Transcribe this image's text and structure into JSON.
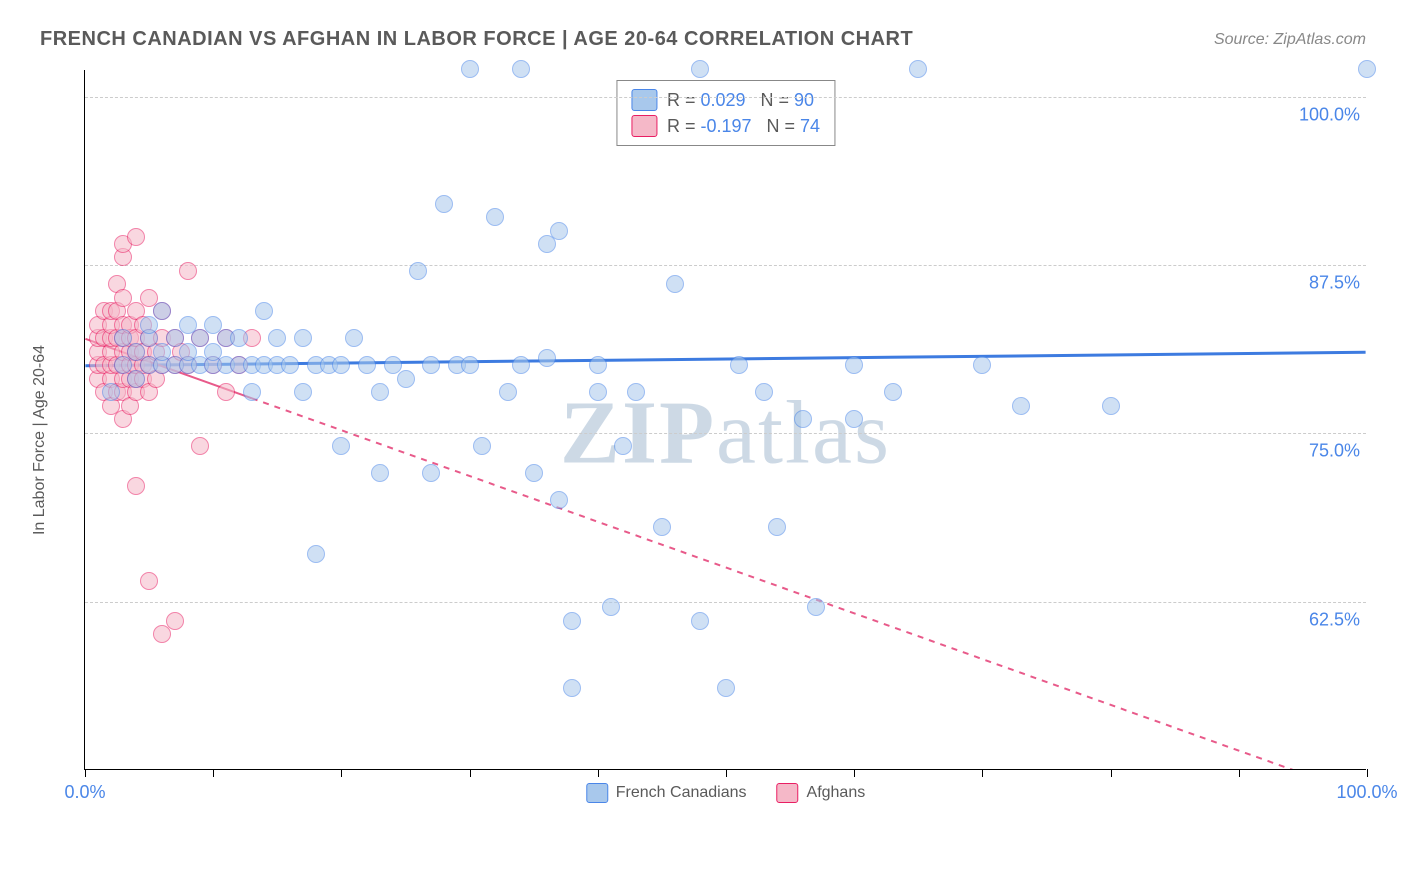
{
  "title": "FRENCH CANADIAN VS AFGHAN IN LABOR FORCE | AGE 20-64 CORRELATION CHART",
  "source": "Source: ZipAtlas.com",
  "y_axis_label": "In Labor Force | Age 20-64",
  "watermark_bold": "ZIP",
  "watermark_rest": "atlas",
  "chart": {
    "type": "scatter",
    "x_range": [
      0,
      100
    ],
    "y_range": [
      50,
      102
    ],
    "background_color": "#ffffff",
    "grid_color": "#cccccc",
    "y_ticks": [
      62.5,
      75.0,
      87.5,
      100.0
    ],
    "y_tick_labels": [
      "62.5%",
      "75.0%",
      "87.5%",
      "100.0%"
    ],
    "y_tick_color": "#4a86e8",
    "x_ticks": [
      0,
      10,
      20,
      30,
      40,
      50,
      60,
      70,
      80,
      90,
      100
    ],
    "x_tick_labels_shown": {
      "0": "0.0%",
      "100": "100.0%"
    },
    "x_tick_color": "#4a86e8",
    "marker_radius": 9,
    "series": {
      "french_canadians": {
        "label": "French Canadians",
        "fill_color": "#a8c8ec",
        "stroke_color": "#4a86e8",
        "fill_opacity": 0.55,
        "R": "0.029",
        "N": "90",
        "trend": {
          "y_at_x0": 80.0,
          "y_at_x100": 81.0,
          "solid_until_x": 100,
          "color": "#3d7be0",
          "width": 3
        },
        "points": [
          [
            2,
            78
          ],
          [
            3,
            80
          ],
          [
            3,
            82
          ],
          [
            4,
            79
          ],
          [
            4,
            81
          ],
          [
            5,
            80
          ],
          [
            5,
            82
          ],
          [
            5,
            83
          ],
          [
            6,
            80
          ],
          [
            6,
            81
          ],
          [
            6,
            84
          ],
          [
            7,
            80
          ],
          [
            7,
            82
          ],
          [
            8,
            80
          ],
          [
            8,
            81
          ],
          [
            8,
            83
          ],
          [
            9,
            80
          ],
          [
            9,
            82
          ],
          [
            10,
            80
          ],
          [
            10,
            81
          ],
          [
            10,
            83
          ],
          [
            11,
            80
          ],
          [
            11,
            82
          ],
          [
            12,
            80
          ],
          [
            12,
            82
          ],
          [
            13,
            80
          ],
          [
            13,
            78
          ],
          [
            14,
            84
          ],
          [
            14,
            80
          ],
          [
            15,
            80
          ],
          [
            15,
            82
          ],
          [
            16,
            80
          ],
          [
            17,
            82
          ],
          [
            17,
            78
          ],
          [
            18,
            80
          ],
          [
            18,
            66
          ],
          [
            19,
            80
          ],
          [
            20,
            74
          ],
          [
            20,
            80
          ],
          [
            21,
            82
          ],
          [
            22,
            80
          ],
          [
            23,
            78
          ],
          [
            23,
            72
          ],
          [
            24,
            80
          ],
          [
            25,
            79
          ],
          [
            26,
            87
          ],
          [
            27,
            80
          ],
          [
            27,
            72
          ],
          [
            28,
            92
          ],
          [
            29,
            80
          ],
          [
            30,
            80
          ],
          [
            30,
            102
          ],
          [
            31,
            74
          ],
          [
            32,
            91
          ],
          [
            33,
            78
          ],
          [
            34,
            80
          ],
          [
            34,
            102
          ],
          [
            35,
            72
          ],
          [
            36,
            89
          ],
          [
            36,
            80.5
          ],
          [
            37,
            70
          ],
          [
            37,
            90
          ],
          [
            38,
            61
          ],
          [
            38,
            56
          ],
          [
            40,
            78
          ],
          [
            40,
            80
          ],
          [
            41,
            62
          ],
          [
            42,
            74
          ],
          [
            43,
            78
          ],
          [
            45,
            68
          ],
          [
            46,
            86
          ],
          [
            48,
            102
          ],
          [
            48,
            61
          ],
          [
            50,
            56
          ],
          [
            51,
            80
          ],
          [
            53,
            78
          ],
          [
            54,
            68
          ],
          [
            56,
            76
          ],
          [
            57,
            62
          ],
          [
            60,
            80
          ],
          [
            60,
            76
          ],
          [
            63,
            78
          ],
          [
            65,
            102
          ],
          [
            70,
            80
          ],
          [
            73,
            77
          ],
          [
            80,
            77
          ],
          [
            100,
            102
          ]
        ]
      },
      "afghans": {
        "label": "Afghans",
        "fill_color": "#f5b8c8",
        "stroke_color": "#e91e63",
        "fill_opacity": 0.55,
        "R": "-0.197",
        "N": "74",
        "trend": {
          "y_at_x0": 82.0,
          "y_at_x100": 48.0,
          "solid_until_x": 13,
          "color": "#e85a8a",
          "width": 2
        },
        "points": [
          [
            1,
            79
          ],
          [
            1,
            80
          ],
          [
            1,
            81
          ],
          [
            1,
            82
          ],
          [
            1,
            83
          ],
          [
            1.5,
            78
          ],
          [
            1.5,
            80
          ],
          [
            1.5,
            82
          ],
          [
            1.5,
            84
          ],
          [
            2,
            77
          ],
          [
            2,
            79
          ],
          [
            2,
            80
          ],
          [
            2,
            81
          ],
          [
            2,
            82
          ],
          [
            2,
            83
          ],
          [
            2,
            84
          ],
          [
            2.5,
            78
          ],
          [
            2.5,
            80
          ],
          [
            2.5,
            82
          ],
          [
            2.5,
            84
          ],
          [
            2.5,
            86
          ],
          [
            3,
            76
          ],
          [
            3,
            78
          ],
          [
            3,
            79
          ],
          [
            3,
            80
          ],
          [
            3,
            81
          ],
          [
            3,
            82
          ],
          [
            3,
            83
          ],
          [
            3,
            85
          ],
          [
            3,
            88
          ],
          [
            3,
            89
          ],
          [
            3.5,
            77
          ],
          [
            3.5,
            79
          ],
          [
            3.5,
            80
          ],
          [
            3.5,
            81
          ],
          [
            3.5,
            82
          ],
          [
            3.5,
            83
          ],
          [
            4,
            71
          ],
          [
            4,
            78
          ],
          [
            4,
            79
          ],
          [
            4,
            80
          ],
          [
            4,
            81
          ],
          [
            4,
            82
          ],
          [
            4,
            84
          ],
          [
            4,
            89.5
          ],
          [
            4.5,
            79
          ],
          [
            4.5,
            80
          ],
          [
            4.5,
            81
          ],
          [
            4.5,
            83
          ],
          [
            5,
            64
          ],
          [
            5,
            78
          ],
          [
            5,
            80
          ],
          [
            5,
            82
          ],
          [
            5,
            85
          ],
          [
            5.5,
            79
          ],
          [
            5.5,
            81
          ],
          [
            6,
            60
          ],
          [
            6,
            80
          ],
          [
            6,
            82
          ],
          [
            6,
            84
          ],
          [
            7,
            61
          ],
          [
            7,
            80
          ],
          [
            7,
            82
          ],
          [
            7.5,
            81
          ],
          [
            8,
            87
          ],
          [
            8,
            80
          ],
          [
            9,
            74
          ],
          [
            9,
            82
          ],
          [
            10,
            80
          ],
          [
            11,
            82
          ],
          [
            11,
            78
          ],
          [
            12,
            80
          ],
          [
            13,
            82
          ]
        ]
      }
    }
  },
  "top_legend": {
    "rows": [
      {
        "swatch_fill": "#a8c8ec",
        "swatch_stroke": "#4a86e8",
        "text_pre": "R = ",
        "val1": "0.029",
        "text_mid": "   N = ",
        "val2": "90"
      },
      {
        "swatch_fill": "#f5b8c8",
        "swatch_stroke": "#e91e63",
        "text_pre": "R = ",
        "val1": "-0.197",
        "text_mid": "   N = ",
        "val2": "74"
      }
    ],
    "value_color": "#4a86e8"
  }
}
